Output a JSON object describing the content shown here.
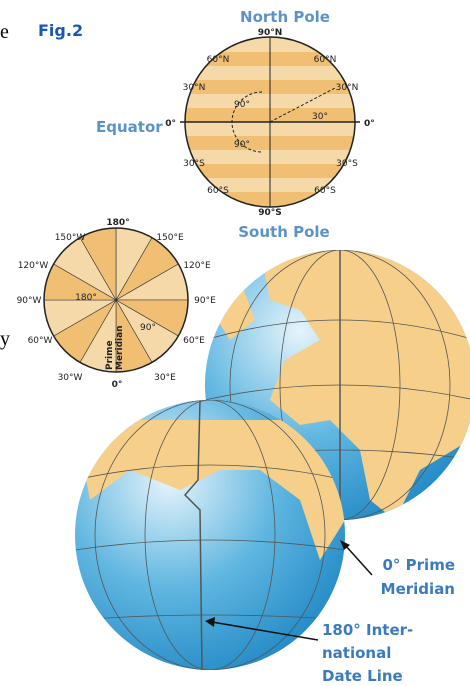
{
  "edge_fragments": [
    "e",
    "y"
  ],
  "figure_label": "Fig.2",
  "latitude_diagram": {
    "north_label": "North Pole",
    "south_label": "South Pole",
    "equator_label": "Equator",
    "ticks": [
      "90°N",
      "60°N",
      "60°N",
      "30°N",
      "30°N",
      "0°",
      "0°",
      "30°S",
      "30°S",
      "60°S",
      "60°S",
      "90°S"
    ],
    "angles": [
      "90°",
      "30°",
      "90°"
    ]
  },
  "longitude_diagram": {
    "ticks": [
      "180°",
      "150°W",
      "150°E",
      "120°W",
      "120°E",
      "90°W",
      "90°E",
      "60°W",
      "60°E",
      "30°W",
      "30°E",
      "0°"
    ],
    "angles": [
      "180°",
      "90°"
    ],
    "meridian_label": [
      "Prime",
      "Meridian"
    ]
  },
  "globe_labels": {
    "prime_meridian": [
      "0° Prime",
      "Meridian"
    ],
    "date_line": [
      "180° Inter-",
      "national",
      "Date Line"
    ]
  }
}
